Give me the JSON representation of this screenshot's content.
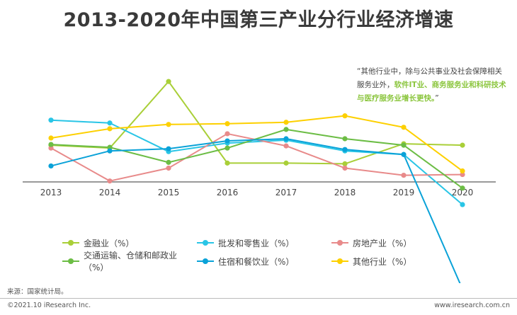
{
  "title": "2013-2020年中国第三产业分行业经济增速",
  "annotation": {
    "prefix": "“其他行业中，除与公共事业及社会保障相关服务业外，",
    "highlight": "软件IT业、商务服务业和科研技术与医疗服务业增长更快。",
    "suffix": "”"
  },
  "source": "来源：国家统计局。",
  "copyright": "©2021.10 iResearch Inc.",
  "website": "www.iresearch.com.cn",
  "chart_data": {
    "type": "line",
    "x": [
      "2013",
      "2014",
      "2015",
      "2016",
      "2017",
      "2018",
      "2019",
      "2020"
    ],
    "ylim": [
      -10,
      17
    ],
    "grid": false,
    "legend_position": "bottom",
    "series": [
      {
        "name": "金融业（%）",
        "color": "#a9cf38",
        "values": [
          7.0,
          6.6,
          15.9,
          4.5,
          4.5,
          4.4,
          7.2,
          7.0
        ]
      },
      {
        "name": "批发和零售业（%）",
        "color": "#29c5e6",
        "values": [
          10.5,
          10.1,
          6.1,
          7.3,
          7.7,
          6.2,
          5.7,
          -1.3
        ]
      },
      {
        "name": "房地产业（%）",
        "color": "#e88a8a",
        "values": [
          6.6,
          2.0,
          3.8,
          8.6,
          6.9,
          3.8,
          2.8,
          2.9
        ]
      },
      {
        "name": "交通运输、仓储和邮政业（%）",
        "color": "#6cbd45",
        "values": [
          7.1,
          6.7,
          4.6,
          6.6,
          9.2,
          7.9,
          7.0,
          1.0
        ]
      },
      {
        "name": "住宿和餐饮业（%）",
        "color": "#0aa2d8",
        "values": [
          4.1,
          6.2,
          6.5,
          7.6,
          7.9,
          6.4,
          5.7,
          -13.1
        ]
      },
      {
        "name": "其他行业（%）",
        "color": "#fdd000",
        "values": [
          8.0,
          9.3,
          9.9,
          10.0,
          10.2,
          11.1,
          9.5,
          3.4
        ]
      }
    ]
  }
}
